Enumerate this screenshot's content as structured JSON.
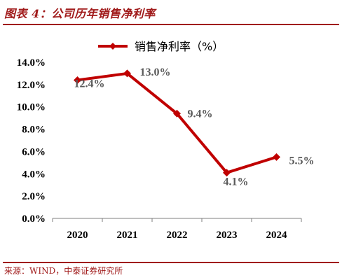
{
  "figure": {
    "title": "图表 4：公司历年销售净利率",
    "source": "来源：WIND，中泰证券研究所"
  },
  "colors": {
    "accent": "#a01a1a",
    "series": "#c00000",
    "label_text": "#595959",
    "axis_text": "#000000"
  },
  "chart_data": {
    "type": "line",
    "title": "",
    "xlabel": "",
    "ylabel": "",
    "x": [
      "2020",
      "2021",
      "2022",
      "2023",
      "2024"
    ],
    "series": [
      {
        "name": "销售净利率（%）",
        "values": [
          12.4,
          13.0,
          9.4,
          4.1,
          5.5
        ],
        "labels": [
          "12.4%",
          "13.0%",
          "9.4%",
          "4.1%",
          "5.5%"
        ],
        "marker": "diamond"
      }
    ],
    "ylim": [
      0,
      14
    ],
    "yticks": [
      "0.0%",
      "2.0%",
      "4.0%",
      "6.0%",
      "8.0%",
      "10.0%",
      "12.0%",
      "14.0%"
    ],
    "grid": false,
    "legend_position": "top-center"
  }
}
